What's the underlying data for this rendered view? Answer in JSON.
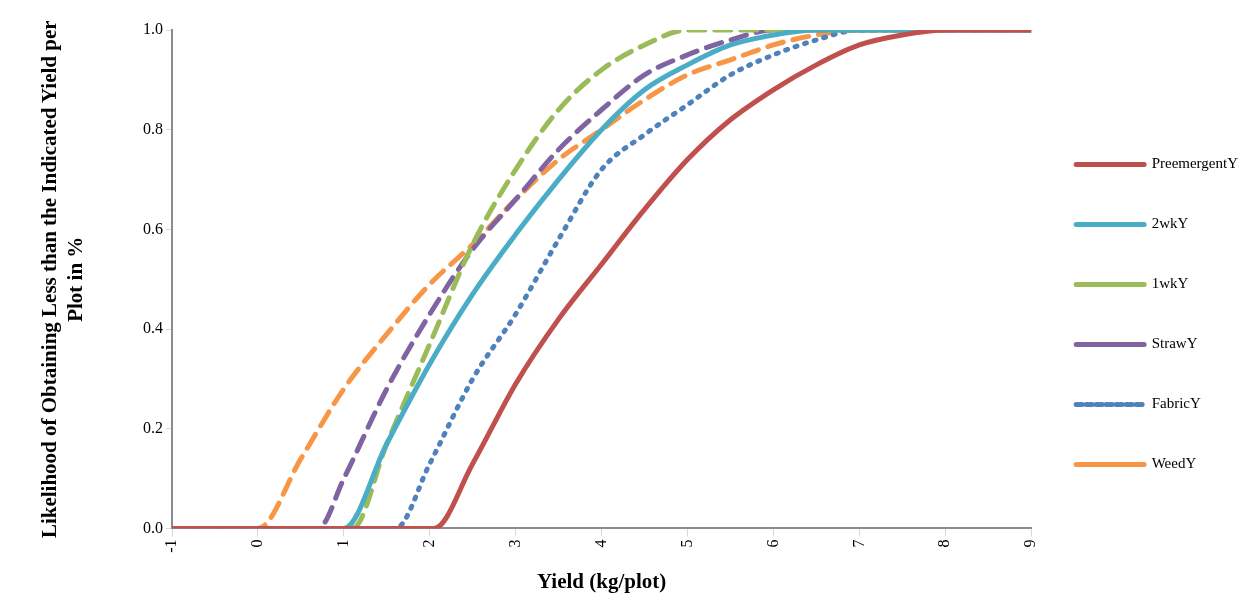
{
  "chart_data": {
    "type": "line",
    "xlabel": "Yield (kg/plot)",
    "ylabel": "Likelihood of Obtaining Less than the Indicated Yield per Plot in %",
    "xlim": [
      -1,
      9
    ],
    "xticks": [
      -1,
      0,
      1,
      2,
      3,
      4,
      5,
      6,
      7,
      8,
      9
    ],
    "ylim": [
      0,
      1
    ],
    "yticks": [
      {
        "value": 0,
        "label": "0.0"
      },
      {
        "value": 0.2,
        "label": "0.2"
      },
      {
        "value": 0.4,
        "label": "0.4"
      },
      {
        "value": 0.6,
        "label": "0.6"
      },
      {
        "value": 0.8,
        "label": "0.8"
      },
      {
        "value": 1,
        "label": "1.0"
      }
    ],
    "grid": false,
    "legend": "right",
    "marker": "none",
    "series": [
      {
        "name": "PreemergentY",
        "color": "#c0504d",
        "line_style": "solid",
        "x": [
          -1,
          2.05,
          2.5,
          3,
          3.5,
          4,
          4.5,
          5,
          5.5,
          6,
          6.5,
          7,
          7.5,
          8,
          9
        ],
        "values": [
          0,
          0,
          0.13,
          0.29,
          0.42,
          0.53,
          0.64,
          0.74,
          0.82,
          0.88,
          0.93,
          0.97,
          0.99,
          1,
          1
        ]
      },
      {
        "name": "2wkY",
        "color": "#4bacc6",
        "line_style": "solid",
        "x": [
          -1,
          1,
          1.5,
          2,
          2.5,
          3,
          3.5,
          4,
          4.5,
          5,
          5.5,
          6,
          6.5,
          9
        ],
        "values": [
          0,
          0,
          0.17,
          0.33,
          0.47,
          0.59,
          0.7,
          0.8,
          0.88,
          0.93,
          0.97,
          0.99,
          1,
          1
        ]
      },
      {
        "name": "1wkY",
        "color": "#9bbb59",
        "line_style": "dashed",
        "x": [
          -1,
          1.1,
          1.5,
          2,
          2.5,
          3,
          3.5,
          4,
          4.5,
          5,
          9
        ],
        "values": [
          0,
          0,
          0.17,
          0.37,
          0.57,
          0.72,
          0.84,
          0.92,
          0.97,
          1,
          1
        ]
      },
      {
        "name": "StrawY",
        "color": "#8064a2",
        "line_style": "dashed",
        "x": [
          -1,
          0.7,
          1,
          1.5,
          2,
          2.5,
          3,
          3.5,
          4,
          4.5,
          5,
          5.5,
          6,
          9
        ],
        "values": [
          0,
          0,
          0.1,
          0.28,
          0.43,
          0.56,
          0.66,
          0.76,
          0.84,
          0.91,
          0.95,
          0.98,
          1,
          1
        ]
      },
      {
        "name": "FabricY",
        "color": "#4f81bd",
        "line_style": "dotted",
        "x": [
          -1,
          1.6,
          2,
          2.5,
          3,
          3.5,
          4,
          4.5,
          5,
          5.5,
          6,
          6.5,
          7,
          9
        ],
        "values": [
          0,
          0,
          0.13,
          0.3,
          0.43,
          0.58,
          0.72,
          0.79,
          0.85,
          0.91,
          0.95,
          0.98,
          1,
          1
        ]
      },
      {
        "name": "WeedY",
        "color": "#f79646",
        "line_style": "dashed",
        "x": [
          -1,
          0,
          0.5,
          1,
          1.5,
          2,
          2.5,
          3,
          3.5,
          4,
          4.5,
          5,
          5.5,
          6,
          6.5,
          7,
          9
        ],
        "values": [
          0,
          0,
          0.14,
          0.28,
          0.39,
          0.49,
          0.57,
          0.66,
          0.74,
          0.8,
          0.86,
          0.91,
          0.94,
          0.97,
          0.99,
          1,
          1
        ]
      }
    ]
  }
}
